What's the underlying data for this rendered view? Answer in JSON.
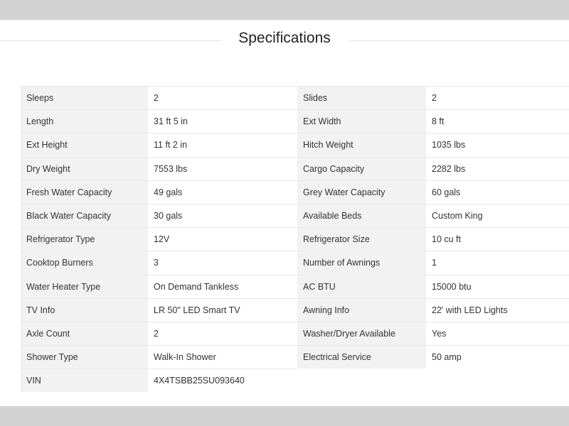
{
  "title": "Specifications",
  "rows": [
    [
      {
        "label": "Sleeps",
        "value": "2"
      },
      {
        "label": "Slides",
        "value": "2"
      }
    ],
    [
      {
        "label": "Length",
        "value": "31 ft 5 in"
      },
      {
        "label": "Ext Width",
        "value": "8 ft"
      }
    ],
    [
      {
        "label": "Ext Height",
        "value": "11 ft 2 in"
      },
      {
        "label": "Hitch Weight",
        "value": "1035 lbs"
      }
    ],
    [
      {
        "label": "Dry Weight",
        "value": "7553 lbs"
      },
      {
        "label": "Cargo Capacity",
        "value": "2282 lbs"
      }
    ],
    [
      {
        "label": "Fresh Water Capacity",
        "value": "49 gals"
      },
      {
        "label": "Grey Water Capacity",
        "value": "60 gals"
      }
    ],
    [
      {
        "label": "Black Water Capacity",
        "value": "30 gals"
      },
      {
        "label": "Available Beds",
        "value": "Custom King"
      }
    ],
    [
      {
        "label": "Refrigerator Type",
        "value": "12V"
      },
      {
        "label": "Refrigerator Size",
        "value": "10 cu ft"
      }
    ],
    [
      {
        "label": "Cooktop Burners",
        "value": "3"
      },
      {
        "label": "Number of Awnings",
        "value": "1"
      }
    ],
    [
      {
        "label": "Water Heater Type",
        "value": "On Demand Tankless"
      },
      {
        "label": "AC BTU",
        "value": "15000 btu"
      }
    ],
    [
      {
        "label": "TV Info",
        "value": "LR 50\" LED Smart TV"
      },
      {
        "label": "Awning Info",
        "value": "22' with LED Lights"
      }
    ],
    [
      {
        "label": "Axle Count",
        "value": "2"
      },
      {
        "label": "Washer/Dryer Available",
        "value": "Yes"
      }
    ],
    [
      {
        "label": "Shower Type",
        "value": "Walk-In Shower"
      },
      {
        "label": "Electrical Service",
        "value": "50 amp"
      }
    ],
    [
      {
        "label": "VIN",
        "value": "4X4TSBB25SU093640"
      }
    ]
  ]
}
